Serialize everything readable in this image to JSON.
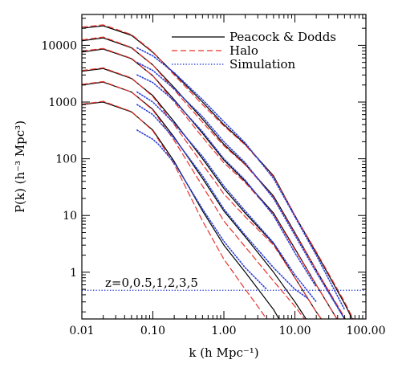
{
  "chart_data": {
    "type": "line",
    "title": "",
    "xlabel": "k (h Mpc⁻¹)",
    "ylabel": "P(k) (h⁻³ Mpc³)",
    "xscale": "log",
    "yscale": "log",
    "xlim": [
      0.01,
      100.0
    ],
    "ylim": [
      0.15,
      35000
    ],
    "x_ticks": [
      0.01,
      0.1,
      1,
      10,
      100
    ],
    "x_tick_labels": [
      "0.01",
      "0.10",
      "1.00",
      "10.00",
      "100.00"
    ],
    "y_ticks": [
      1,
      10,
      100,
      1000,
      10000
    ],
    "y_tick_labels": [
      "1",
      "10",
      "100",
      "1000",
      "10000"
    ],
    "grid": false,
    "legend_position": "top-right",
    "annotation": "z=0,0.5,1,2,3,5",
    "shot_noise_level": 0.48,
    "redshifts": [
      0,
      0.5,
      1,
      2,
      3,
      5
    ],
    "series": [
      {
        "name": "Peacock & Dodds",
        "color": "#000000",
        "dash": "solid",
        "curves": [
          {
            "x": [
              0.01,
              0.02,
              0.05,
              0.1,
              0.2,
              0.5,
              1,
              2,
              5,
              10,
              20,
              50,
              70
            ],
            "y": [
              20000,
              22000,
              15000,
              7500,
              3200,
              1000,
              400,
              180,
              50,
              10,
              2.2,
              0.28,
              0.12
            ]
          },
          {
            "x": [
              0.01,
              0.02,
              0.05,
              0.1,
              0.2,
              0.5,
              1,
              2,
              5,
              10,
              20,
              50,
              70
            ],
            "y": [
              12000,
              13500,
              9000,
              4500,
              1800,
              500,
              180,
              80,
              22,
              5,
              1.1,
              0.15,
              0.07
            ]
          },
          {
            "x": [
              0.01,
              0.02,
              0.05,
              0.1,
              0.2,
              0.5,
              1,
              2,
              5,
              10,
              20,
              50
            ],
            "y": [
              7600,
              8600,
              5800,
              2900,
              1100,
              280,
              95,
              40,
              11,
              2.6,
              0.6,
              0.09
            ]
          },
          {
            "x": [
              0.01,
              0.02,
              0.05,
              0.1,
              0.2,
              0.5,
              1,
              2,
              5,
              10,
              20,
              40
            ],
            "y": [
              3500,
              3900,
              2600,
              1300,
              450,
              100,
              30,
              11,
              3.2,
              0.8,
              0.2,
              0.06
            ]
          },
          {
            "x": [
              0.01,
              0.02,
              0.05,
              0.1,
              0.2,
              0.5,
              1,
              2,
              5,
              10,
              20
            ],
            "y": [
              2000,
              2250,
              1500,
              740,
              240,
              45,
              12,
              4.2,
              1.0,
              0.3,
              0.08
            ]
          },
          {
            "x": [
              0.01,
              0.02,
              0.05,
              0.1,
              0.2,
              0.5,
              1,
              2,
              5,
              8
            ],
            "y": [
              900,
              1000,
              670,
              320,
              90,
              12,
              3,
              1,
              0.22,
              0.08
            ]
          }
        ]
      },
      {
        "name": "Halo",
        "color": "#e8322b",
        "dash": "dashed",
        "curves": [
          {
            "x": [
              0.01,
              0.02,
              0.05,
              0.1,
              0.2,
              0.5,
              1,
              2,
              5,
              10,
              20,
              50,
              70
            ],
            "y": [
              21000,
              23000,
              15500,
              7700,
              3000,
              900,
              380,
              175,
              48,
              10,
              2.3,
              0.3,
              0.13
            ]
          },
          {
            "x": [
              0.01,
              0.02,
              0.05,
              0.1,
              0.2,
              0.5,
              1,
              2,
              5,
              10,
              20,
              50,
              70
            ],
            "y": [
              12500,
              14000,
              9200,
              4500,
              1650,
              440,
              170,
              78,
              21,
              4.8,
              1.1,
              0.16,
              0.07
            ]
          },
          {
            "x": [
              0.01,
              0.02,
              0.05,
              0.1,
              0.2,
              0.5,
              1,
              2,
              5,
              10,
              20,
              50
            ],
            "y": [
              7900,
              8800,
              5900,
              2900,
              1000,
              240,
              85,
              38,
              10.5,
              2.5,
              0.6,
              0.09
            ]
          },
          {
            "x": [
              0.01,
              0.02,
              0.05,
              0.1,
              0.2,
              0.5,
              1,
              2,
              5,
              10,
              20,
              40
            ],
            "y": [
              3600,
              4000,
              2650,
              1250,
              400,
              80,
              24,
              9.5,
              3.0,
              0.8,
              0.2,
              0.06
            ]
          },
          {
            "x": [
              0.01,
              0.02,
              0.05,
              0.1,
              0.2,
              0.5,
              1,
              2,
              5,
              10,
              20
            ],
            "y": [
              2050,
              2300,
              1500,
              720,
              210,
              33,
              8,
              2.8,
              0.7,
              0.25,
              0.08
            ]
          },
          {
            "x": [
              0.01,
              0.02,
              0.05,
              0.1,
              0.2,
              0.5,
              1,
              2,
              3,
              5
            ],
            "y": [
              920,
              1030,
              680,
              310,
              80,
              8,
              1.7,
              0.5,
              0.25,
              0.1
            ]
          }
        ]
      },
      {
        "name": "Simulation",
        "color": "#2b3fd6",
        "dash": "dotted",
        "curves": [
          {
            "x": [
              0.06,
              0.1,
              0.2,
              0.5,
              1,
              2,
              5,
              10,
              20,
              50
            ],
            "y": [
              9000,
              6500,
              3300,
              1100,
              450,
              190,
              45,
              9.5,
              2.0,
              0.22
            ]
          },
          {
            "x": [
              0.06,
              0.1,
              0.2,
              0.5,
              1,
              2,
              5,
              10,
              20,
              50
            ],
            "y": [
              5000,
              3600,
              1700,
              550,
              200,
              85,
              20,
              4.5,
              1.0,
              0.15
            ]
          },
          {
            "x": [
              0.06,
              0.1,
              0.2,
              0.5,
              1,
              2,
              5,
              10,
              20
            ],
            "y": [
              3000,
              2200,
              1050,
              300,
              100,
              42,
              10,
              2.2,
              0.55
            ]
          },
          {
            "x": [
              0.06,
              0.1,
              0.2,
              0.5,
              1,
              2,
              5,
              10,
              20
            ],
            "y": [
              1500,
              1000,
              420,
              110,
              33,
              12,
              3.3,
              0.9,
              0.3
            ]
          },
          {
            "x": [
              0.06,
              0.1,
              0.2,
              0.5,
              1,
              2,
              5,
              10,
              15
            ],
            "y": [
              900,
              600,
              230,
              50,
              13,
              4.5,
              1.2,
              0.5,
              0.35
            ]
          },
          {
            "x": [
              0.06,
              0.1,
              0.12,
              0.2,
              0.5,
              1,
              2,
              4
            ],
            "y": [
              320,
              220,
              180,
              85,
              13,
              3.5,
              1.2,
              0.5
            ]
          }
        ]
      }
    ]
  }
}
